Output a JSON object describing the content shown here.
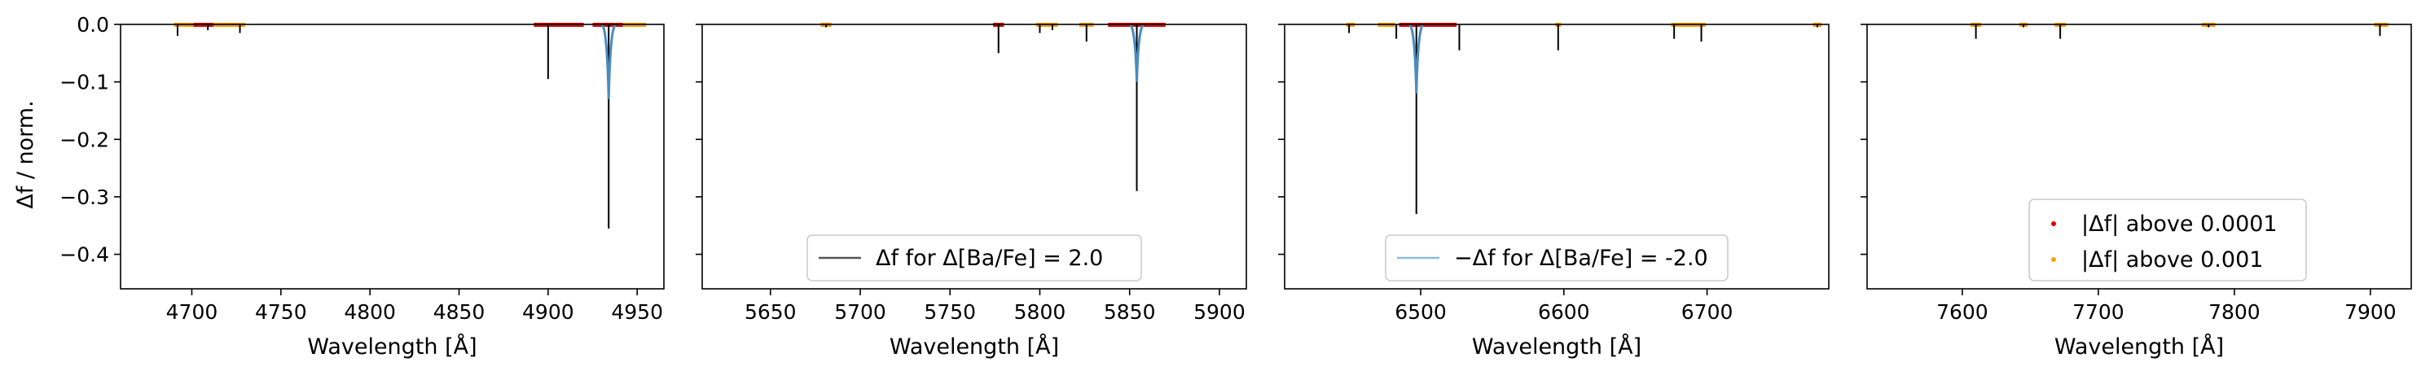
{
  "figure": {
    "ylabel": "Δf / norm.",
    "yticks": [
      "0.0",
      "−0.1",
      "−0.2",
      "−0.3",
      "−0.4"
    ],
    "ytick_values": [
      0.0,
      -0.1,
      -0.2,
      -0.3,
      -0.4
    ],
    "ylim": [
      -0.46,
      0.0
    ]
  },
  "colors": {
    "black_line": "#000000",
    "blue_line": "#4b8bbe",
    "red_points": "#e00000",
    "orange_points": "#ff9f00",
    "legend_black": "#555555",
    "legend_blue": "#8cbbd9"
  },
  "chart_data": [
    {
      "type": "line",
      "panel": 1,
      "xlabel": "Wavelength [Å]",
      "xlim": [
        4660,
        4965
      ],
      "xticks": [
        4700,
        4750,
        4800,
        4850,
        4900,
        4950
      ],
      "series": [
        {
          "kind": "black",
          "lines": [
            {
              "x": 4692,
              "y": -0.02
            },
            {
              "x": 4709,
              "y": -0.01
            },
            {
              "x": 4727,
              "y": -0.015
            },
            {
              "x": 4900,
              "y": -0.095
            },
            {
              "x": 4934,
              "y": -0.355
            }
          ]
        },
        {
          "kind": "blue",
          "lines": [
            {
              "x": 4934,
              "y": -0.13
            }
          ]
        }
      ],
      "markers": [
        {
          "x0": 4690,
          "x1": 4730,
          "color": "orange"
        },
        {
          "x0": 4701,
          "x1": 4712,
          "color": "red"
        },
        {
          "x0": 4892,
          "x1": 4920,
          "color": "red"
        },
        {
          "x0": 4925,
          "x1": 4942,
          "color": "red"
        },
        {
          "x0": 4942,
          "x1": 4955,
          "color": "orange"
        }
      ]
    },
    {
      "type": "line",
      "panel": 2,
      "xlabel": "Wavelength [Å]",
      "xlim": [
        5612,
        5915
      ],
      "xticks": [
        5650,
        5700,
        5750,
        5800,
        5850,
        5900
      ],
      "series": [
        {
          "kind": "black",
          "lines": [
            {
              "x": 5681,
              "y": -0.005
            },
            {
              "x": 5777,
              "y": -0.05
            },
            {
              "x": 5800,
              "y": -0.015
            },
            {
              "x": 5807,
              "y": -0.01
            },
            {
              "x": 5826,
              "y": -0.03
            },
            {
              "x": 5854,
              "y": -0.29
            }
          ]
        },
        {
          "kind": "blue",
          "lines": [
            {
              "x": 5854,
              "y": -0.1
            }
          ]
        }
      ],
      "markers": [
        {
          "x0": 5678,
          "x1": 5684,
          "color": "orange"
        },
        {
          "x0": 5774,
          "x1": 5780,
          "color": "red"
        },
        {
          "x0": 5798,
          "x1": 5810,
          "color": "orange"
        },
        {
          "x0": 5822,
          "x1": 5830,
          "color": "orange"
        },
        {
          "x0": 5838,
          "x1": 5870,
          "color": "red"
        }
      ],
      "legend": {
        "label": "Δf for Δ[Ba/Fe] = 2.0",
        "kind": "black",
        "placement": "bottom-center"
      }
    },
    {
      "type": "line",
      "panel": 3,
      "xlabel": "Wavelength [Å]",
      "xlim": [
        6405,
        6785
      ],
      "xticks": [
        6500,
        6600,
        6700
      ],
      "series": [
        {
          "kind": "black",
          "lines": [
            {
              "x": 6450,
              "y": -0.015
            },
            {
              "x": 6483,
              "y": -0.025
            },
            {
              "x": 6497,
              "y": -0.33
            },
            {
              "x": 6527,
              "y": -0.045
            },
            {
              "x": 6596,
              "y": -0.045
            },
            {
              "x": 6677,
              "y": -0.025
            },
            {
              "x": 6696,
              "y": -0.03
            },
            {
              "x": 6777,
              "y": -0.005
            }
          ]
        },
        {
          "kind": "blue",
          "lines": [
            {
              "x": 6497,
              "y": -0.12
            }
          ]
        }
      ],
      "markers": [
        {
          "x0": 6448,
          "x1": 6454,
          "color": "orange"
        },
        {
          "x0": 6470,
          "x1": 6482,
          "color": "orange"
        },
        {
          "x0": 6485,
          "x1": 6525,
          "color": "red"
        },
        {
          "x0": 6594,
          "x1": 6598,
          "color": "orange"
        },
        {
          "x0": 6675,
          "x1": 6699,
          "color": "orange"
        },
        {
          "x0": 6774,
          "x1": 6780,
          "color": "orange"
        }
      ],
      "legend": {
        "label": "−Δf for Δ[Ba/Fe] = -2.0",
        "kind": "blue",
        "placement": "bottom-center"
      }
    },
    {
      "type": "line",
      "panel": 4,
      "xlabel": "Wavelength [Å]",
      "xlim": [
        7530,
        7930
      ],
      "xticks": [
        7600,
        7700,
        7800,
        7900
      ],
      "series": [
        {
          "kind": "black",
          "lines": [
            {
              "x": 7610,
              "y": -0.025
            },
            {
              "x": 7645,
              "y": -0.005
            },
            {
              "x": 7672,
              "y": -0.025
            },
            {
              "x": 7781,
              "y": -0.005
            },
            {
              "x": 7907,
              "y": -0.02
            }
          ]
        }
      ],
      "markers": [
        {
          "x0": 7606,
          "x1": 7614,
          "color": "orange"
        },
        {
          "x0": 7642,
          "x1": 7648,
          "color": "orange"
        },
        {
          "x0": 7668,
          "x1": 7676,
          "color": "orange"
        },
        {
          "x0": 7776,
          "x1": 7786,
          "color": "orange"
        },
        {
          "x0": 7903,
          "x1": 7913,
          "color": "orange"
        }
      ],
      "legend": {
        "placement": "bottom-center",
        "entries": [
          {
            "label": "|Δf| above 0.0001",
            "color": "red"
          },
          {
            "label": "|Δf| above 0.001",
            "color": "orange"
          }
        ]
      }
    }
  ]
}
